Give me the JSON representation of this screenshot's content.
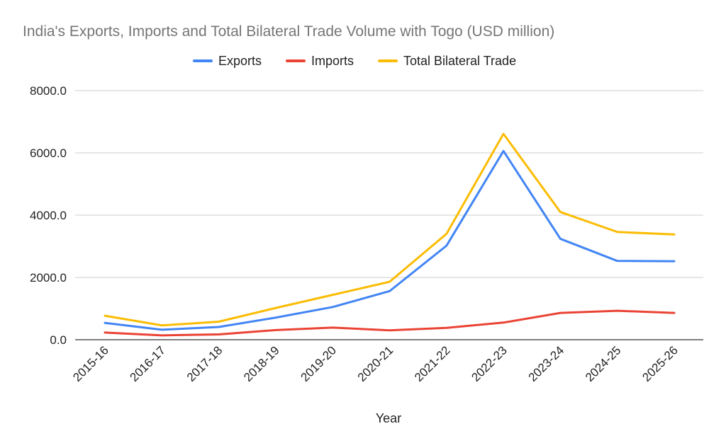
{
  "chart_data": {
    "type": "line",
    "title": "India's Exports, Imports and Total Bilateral Trade Volume with Togo (USD million)",
    "xlabel": "Year",
    "ylabel": "",
    "ylim": [
      0,
      8000
    ],
    "yticks": [
      "0.0",
      "2000.0",
      "4000.0",
      "6000.0",
      "8000.0"
    ],
    "ytick_values": [
      0,
      2000,
      4000,
      6000,
      8000
    ],
    "grid": true,
    "legend_position": "top",
    "categories": [
      "2015-16",
      "2016-17",
      "2017-18",
      "2018-19",
      "2019-20",
      "2020-21",
      "2021-22",
      "2022-23",
      "2023-24",
      "2024-25",
      "2025-26"
    ],
    "series": [
      {
        "name": "Exports",
        "color": "#4285f4",
        "values": [
          540,
          320,
          410,
          710,
          1050,
          1560,
          3020,
          6060,
          3240,
          2530,
          2520
        ]
      },
      {
        "name": "Imports",
        "color": "#ea4335",
        "values": [
          230,
          140,
          170,
          310,
          390,
          300,
          380,
          550,
          860,
          930,
          860
        ]
      },
      {
        "name": "Total Bilateral Trade",
        "color": "#fbbc04",
        "values": [
          770,
          460,
          580,
          1020,
          1440,
          1860,
          3400,
          6610,
          4100,
          3460,
          3380
        ]
      }
    ]
  }
}
